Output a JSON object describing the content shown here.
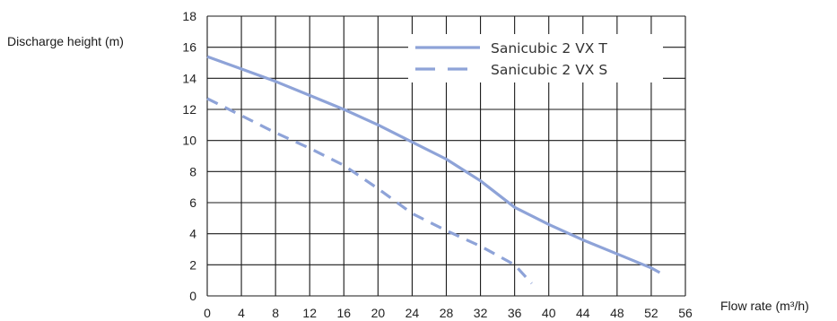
{
  "chart_data": {
    "type": "line",
    "title": "",
    "xlabel": "Flow rate (m³/h)",
    "ylabel": "Discharge height (m)",
    "xlim": [
      0,
      56
    ],
    "ylim": [
      0,
      18
    ],
    "x_ticks": [
      "0",
      "4",
      "8",
      "12",
      "16",
      "20",
      "24",
      "28",
      "32",
      "36",
      "40",
      "44",
      "48",
      "52",
      "56"
    ],
    "y_ticks": [
      "0",
      "2",
      "4",
      "6",
      "8",
      "10",
      "12",
      "14",
      "16",
      "18"
    ],
    "grid": true,
    "legend_position": "top-right",
    "series": [
      {
        "name": "Sanicubic 2 VX T",
        "style": "solid",
        "color": "#8ea3d8",
        "x": [
          0,
          4,
          8,
          12,
          16,
          20,
          24,
          28,
          32,
          36,
          40,
          44,
          48,
          52,
          53
        ],
        "y": [
          15.4,
          14.6,
          13.8,
          12.9,
          12.0,
          11.0,
          9.9,
          8.8,
          7.4,
          5.7,
          4.6,
          3.6,
          2.7,
          1.8,
          1.5
        ]
      },
      {
        "name": "Sanicubic 2 VX S",
        "style": "dashed",
        "color": "#8ea3d8",
        "x": [
          0,
          4,
          8,
          12,
          16,
          20,
          24,
          28,
          32,
          36,
          38
        ],
        "y": [
          12.7,
          11.6,
          10.5,
          9.5,
          8.4,
          6.9,
          5.3,
          4.2,
          3.2,
          2.0,
          0.8
        ]
      }
    ]
  }
}
